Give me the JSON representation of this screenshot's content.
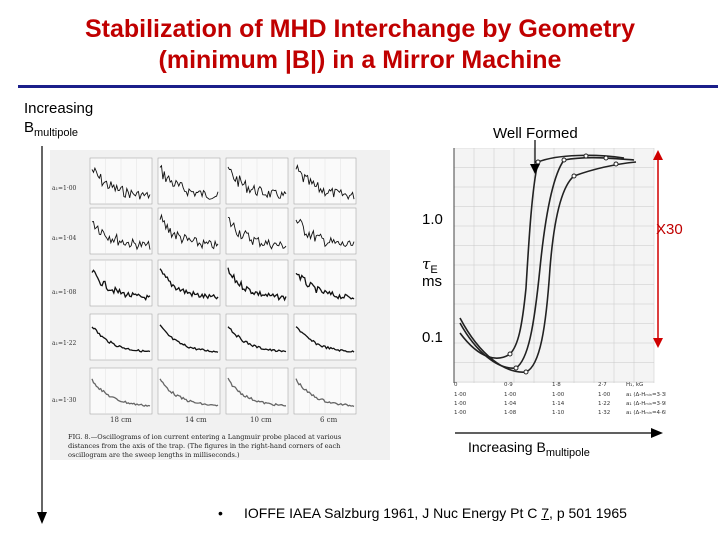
{
  "slide": {
    "title_line1": "Stabilization of MHD Interchange by Geometry",
    "title_line2": "(minimum |B|) in a Mirror Machine"
  },
  "left_axis": {
    "label_line1": "Increasing",
    "label_B": "B",
    "label_sub": "multipole"
  },
  "oscillograms": {
    "row_labels": [
      "a₁=1·00",
      "a₁=1·04",
      "a₁=1·08",
      "a₁=1·22",
      "a₁=1·30"
    ],
    "col_labels": [
      "18 cm",
      "14 cm",
      "10 cm",
      "6 cm"
    ],
    "caption_lines": [
      "FIG. 8.—Oscillograms of ion current entering a Langmuir probe placed at various",
      "distances from the axis of the trap. (The figures in the right-hand corners of each",
      "oscillogram are the sweep lengths in milliseconds.)"
    ]
  },
  "graph": {
    "well_formed_label": "Well Formed",
    "tick_1_0": "1.0",
    "tick_0_1": "0.1",
    "y_label_tau": "τ",
    "y_label_sub": "E",
    "y_label_unit": "ms",
    "x30_label": "X30",
    "x_label": "Increasing B",
    "x_label_sub": "multipole",
    "table_header": [
      "0",
      "0·9",
      "1·8",
      "2·7",
      "H₁, kG"
    ],
    "table_rows": [
      [
        "1·00",
        "1·00",
        "1·00",
        "1·00",
        "a₁ (Δ-Hₘᵢₙ=3·3kG)"
      ],
      [
        "1·00",
        "1·04",
        "1·14",
        "1·22",
        "a₁ (Δ-Hₘᵢₙ=3·9kG)"
      ],
      [
        "1·00",
        "1·08",
        "1·10",
        "1·32",
        "a₁ (Δ-Hₘᵢₙ=4·6kG)"
      ]
    ]
  },
  "reference": {
    "bullet": "•",
    "text_before": "IOFFE IAEA Salzburg 1961,  J Nuc Energy Pt C  ",
    "volume": "7",
    "text_after": ", p 501  1965"
  },
  "colors": {
    "title": "#c00000",
    "rule": "#1b1f8a",
    "arrow": "#d00000"
  }
}
